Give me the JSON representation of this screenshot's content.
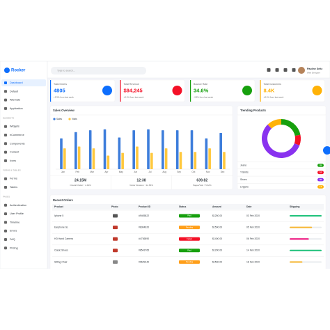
{
  "header": {
    "logo": "Rocker",
    "search_placeholder": "Type to search...",
    "user_name": "Pauline Seitz",
    "user_role": "Web Designer"
  },
  "sidebar": {
    "top": [
      "Dashboard",
      "Default",
      "Alternate",
      "Application"
    ],
    "sections": [
      {
        "heading": "ELEMENTS",
        "items": [
          "Widgets",
          "eCommerce",
          "Components",
          "Content",
          "Icons"
        ]
      },
      {
        "heading": "FORMS & TABLES",
        "items": [
          "Forms",
          "Tables"
        ]
      },
      {
        "heading": "PAGES",
        "items": [
          "Authentication",
          "User Profile",
          "Timeline",
          "Errors",
          "FAQ",
          "Pricing"
        ]
      }
    ]
  },
  "stats": [
    {
      "label": "Total Orders",
      "value": "4805",
      "change": "+2.5% from last week",
      "color": "#0d6efd"
    },
    {
      "label": "Total Revenue",
      "value": "$84,245",
      "change": "+5.4% from last week",
      "color": "#f41127"
    },
    {
      "label": "Bounce Rate",
      "value": "34.6%",
      "change": "-4.5% from last week",
      "color": "#17a00e"
    },
    {
      "label": "Total Customers",
      "value": "8.4K",
      "change": "+8.4% from last week",
      "color": "#ffb207"
    }
  ],
  "chart_data": [
    {
      "type": "bar",
      "title": "Sales Overview",
      "categories": [
        "Jan",
        "Feb",
        "Mar",
        "Apr",
        "May",
        "Jun",
        "Jul",
        "Aug",
        "Sep",
        "Oct",
        "Nov",
        "Dec"
      ],
      "series": [
        {
          "name": "Sales",
          "color": "#3d7ddb",
          "values": [
            68,
            82,
            86,
            88,
            70,
            86,
            88,
            86,
            86,
            86,
            68,
            80
          ]
        },
        {
          "name": "Visits",
          "color": "#ffc83d",
          "values": [
            46,
            50,
            46,
            30,
            36,
            50,
            36,
            46,
            38,
            38,
            46,
            38
          ]
        }
      ],
      "ylim": [
        0,
        100
      ]
    },
    {
      "type": "pie",
      "title": "Trending Products",
      "categories": [
        "Jeans",
        "T-Shirts",
        "Shoes",
        "Lingerie"
      ],
      "values": [
        25,
        10,
        65,
        14
      ],
      "colors": [
        "#17a00e",
        "#f41127",
        "#8932ef",
        "#ffb207"
      ]
    }
  ],
  "sales_summary": [
    {
      "value": "24.15M",
      "label": "Overall Visitor ↑ 2.43%"
    },
    {
      "value": "12:38",
      "label": "Visitor Duration ↑ 12.65%"
    },
    {
      "value": "639.82",
      "label": "Pages/Visit ↑ 5.62%"
    }
  ],
  "orders": {
    "title": "Recent Orders",
    "columns": [
      "Product",
      "Photo",
      "Product ID",
      "Status",
      "Amount",
      "Date",
      "Shipping"
    ],
    "rows": [
      {
        "product": "Iphone 5",
        "product_id": "#9405822",
        "status": "Paid",
        "status_color": "#17a00e",
        "amount": "$1250.00",
        "date": "03 Feb 2020",
        "shipping": 100,
        "shipping_color": "#1fc27a"
      },
      {
        "product": "Earphone GL",
        "product_id": "#8304620",
        "status": "Pending",
        "status_color": "#ff9f1a",
        "amount": "$1500.00",
        "date": "05 Feb 2020",
        "shipping": 70,
        "shipping_color": "#f7b733"
      },
      {
        "product": "HD Hand Camera",
        "product_id": "#4736890",
        "status": "Failed",
        "status_color": "#f41127",
        "amount": "$1400.00",
        "date": "06 Feb 2020",
        "shipping": 60,
        "shipping_color": "#ee0979"
      },
      {
        "product": "Clasic Shoes",
        "product_id": "#8543765",
        "status": "Paid",
        "status_color": "#17a00e",
        "amount": "$1200.00",
        "date": "14 Feb 2020",
        "shipping": 100,
        "shipping_color": "#1fc27a"
      },
      {
        "product": "Sitting Chair",
        "product_id": "#9629240",
        "status": "Pending",
        "status_color": "#ff9f1a",
        "amount": "$1500.00",
        "date": "18 Feb 2020",
        "shipping": 40,
        "shipping_color": "#f7b733"
      }
    ]
  }
}
